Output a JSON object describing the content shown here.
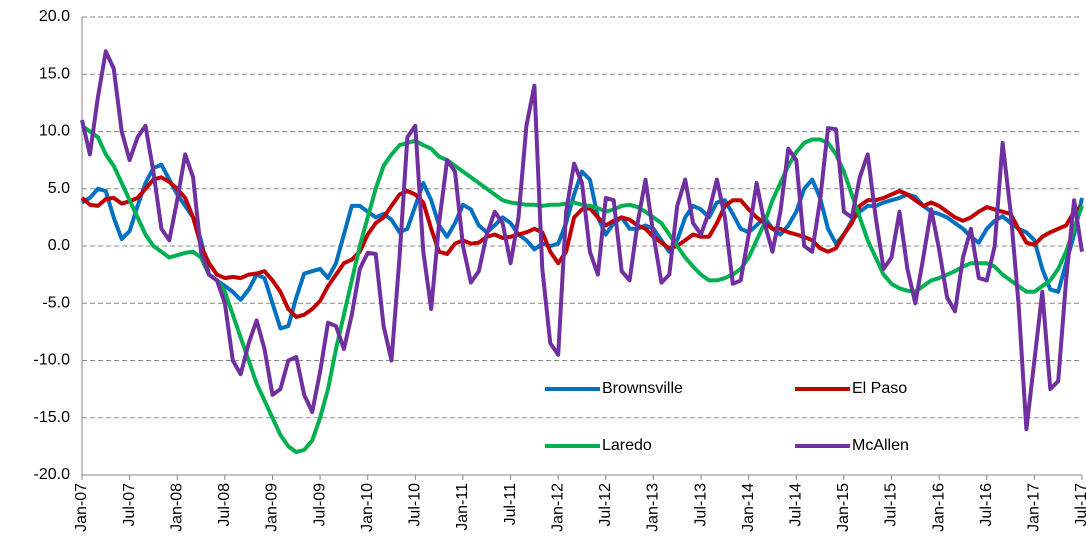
{
  "chart_data": {
    "type": "line",
    "categories": [
      "Jan-07",
      null,
      null,
      null,
      null,
      null,
      "Jul-07",
      null,
      null,
      null,
      null,
      null,
      "Jan-08",
      null,
      null,
      null,
      null,
      null,
      "Jul-08",
      null,
      null,
      null,
      null,
      null,
      "Jan-09",
      null,
      null,
      null,
      null,
      null,
      "Jul-09",
      null,
      null,
      null,
      null,
      null,
      "Jan-10",
      null,
      null,
      null,
      null,
      null,
      "Jul-10",
      null,
      null,
      null,
      null,
      null,
      "Jan-11",
      null,
      null,
      null,
      null,
      null,
      "Jul-11",
      null,
      null,
      null,
      null,
      null,
      "Jan-12",
      null,
      null,
      null,
      null,
      null,
      "Jul-12",
      null,
      null,
      null,
      null,
      null,
      "Jan-13",
      null,
      null,
      null,
      null,
      null,
      "Jul-13",
      null,
      null,
      null,
      null,
      null,
      "Jan-14",
      null,
      null,
      null,
      null,
      null,
      "Jul-14",
      null,
      null,
      null,
      null,
      null,
      "Jan-15",
      null,
      null,
      null,
      null,
      null,
      "Jul-15",
      null,
      null,
      null,
      null,
      null,
      "Jan-16",
      null,
      null,
      null,
      null,
      null,
      "Jul-16",
      null,
      null,
      null,
      null,
      null,
      "Jan-17",
      null,
      null,
      null,
      null,
      null,
      "Jul-17"
    ],
    "series": [
      {
        "name": "Brownsville",
        "color": "#0070c0",
        "values": [
          3.8,
          4.2,
          5.0,
          4.8,
          2.5,
          0.6,
          1.3,
          3.5,
          5.5,
          6.8,
          7.1,
          5.8,
          4.5,
          3.5,
          2.5,
          0.5,
          -2.5,
          -3.0,
          -3.5,
          -4.0,
          -4.7,
          -3.8,
          -2.5,
          -2.8,
          -5.0,
          -7.2,
          -7.0,
          -4.5,
          -2.4,
          -2.2,
          -2.0,
          -2.8,
          -1.5,
          1.0,
          3.5,
          3.5,
          3.0,
          2.5,
          2.8,
          2.3,
          1.2,
          1.5,
          3.5,
          5.5,
          4.0,
          1.8,
          0.8,
          2.0,
          3.6,
          3.2,
          1.8,
          1.2,
          1.8,
          2.5,
          2.0,
          1.0,
          0.5,
          -0.3,
          0.2,
          0.0,
          0.2,
          2.0,
          4.5,
          6.5,
          5.8,
          2.5,
          1.0,
          2.0,
          2.5,
          1.5,
          1.5,
          1.8,
          1.5,
          0.5,
          -0.5,
          0.5,
          2.5,
          3.5,
          3.2,
          2.5,
          3.8,
          4.0,
          2.8,
          1.5,
          1.2,
          1.8,
          2.5,
          1.5,
          1.0,
          1.8,
          3.0,
          5.0,
          5.8,
          4.2,
          1.5,
          0.2,
          1.0,
          2.2,
          3.0,
          3.5,
          3.5,
          3.8,
          4.0,
          4.2,
          4.5,
          4.3,
          3.5,
          3.0,
          2.8,
          2.5,
          2.0,
          1.5,
          0.8,
          0.3,
          1.5,
          2.2,
          2.6,
          2.0,
          1.5,
          1.2,
          0.5,
          -2.0,
          -3.8,
          -4.0,
          -1.5,
          1.0,
          4.2
        ]
      },
      {
        "name": "El Paso",
        "color": "#c00000",
        "values": [
          4.2,
          3.6,
          3.5,
          4.1,
          4.2,
          3.7,
          3.9,
          4.2,
          5.0,
          5.8,
          6.0,
          5.6,
          5.0,
          4.2,
          2.5,
          0.0,
          -1.5,
          -2.5,
          -2.8,
          -2.7,
          -2.8,
          -2.5,
          -2.4,
          -2.2,
          -3.0,
          -4.0,
          -5.5,
          -6.2,
          -6.0,
          -5.5,
          -4.8,
          -3.5,
          -2.5,
          -1.5,
          -1.2,
          -0.5,
          1.0,
          2.0,
          2.5,
          3.5,
          4.5,
          4.8,
          4.5,
          3.8,
          1.5,
          -0.5,
          -0.7,
          0.2,
          0.5,
          0.2,
          0.3,
          0.8,
          1.0,
          0.7,
          0.8,
          1.0,
          1.2,
          1.5,
          1.2,
          -0.5,
          -1.5,
          -0.5,
          2.5,
          3.2,
          3.3,
          2.5,
          1.8,
          2.2,
          2.5,
          2.3,
          1.8,
          1.5,
          0.8,
          0.3,
          -0.2,
          0.0,
          0.5,
          1.0,
          0.8,
          0.8,
          2.0,
          3.5,
          4.0,
          4.0,
          3.2,
          2.5,
          2.0,
          1.5,
          1.5,
          1.2,
          1.0,
          0.8,
          0.5,
          -0.2,
          -0.5,
          -0.2,
          1.0,
          2.0,
          3.5,
          4.0,
          4.0,
          4.2,
          4.5,
          4.8,
          4.5,
          4.0,
          3.5,
          3.8,
          3.5,
          3.0,
          2.5,
          2.2,
          2.5,
          3.0,
          3.4,
          3.2,
          3.0,
          2.8,
          1.5,
          0.3,
          0.1,
          0.8,
          1.2,
          1.5,
          1.8,
          3.0,
          3.5
        ]
      },
      {
        "name": "Laredo",
        "color": "#00b050",
        "values": [
          10.5,
          10.0,
          9.5,
          8.0,
          7.0,
          5.5,
          4.0,
          2.5,
          1.0,
          0.0,
          -0.5,
          -1.0,
          -0.8,
          -0.6,
          -0.5,
          -1.0,
          -2.5,
          -3.0,
          -4.0,
          -6.0,
          -8.0,
          -10.0,
          -12.0,
          -13.5,
          -15.0,
          -16.5,
          -17.5,
          -18.0,
          -17.8,
          -17.0,
          -15.0,
          -12.5,
          -9.0,
          -6.0,
          -3.0,
          0.0,
          2.5,
          5.0,
          7.0,
          8.0,
          8.8,
          9.0,
          9.2,
          8.8,
          8.5,
          7.8,
          7.5,
          7.0,
          6.5,
          6.0,
          5.5,
          5.0,
          4.5,
          4.0,
          3.8,
          3.7,
          3.6,
          3.6,
          3.5,
          3.6,
          3.6,
          3.7,
          3.8,
          3.6,
          3.5,
          3.3,
          3.0,
          3.2,
          3.5,
          3.6,
          3.4,
          3.0,
          2.5,
          2.0,
          1.0,
          0.0,
          -1.0,
          -1.8,
          -2.5,
          -3.0,
          -3.0,
          -2.8,
          -2.5,
          -2.0,
          -1.0,
          0.5,
          2.0,
          4.0,
          5.5,
          7.0,
          8.2,
          9.0,
          9.3,
          9.3,
          9.0,
          8.0,
          6.5,
          4.5,
          2.5,
          0.5,
          -1.0,
          -2.5,
          -3.3,
          -3.7,
          -3.9,
          -4.0,
          -3.5,
          -3.0,
          -2.8,
          -2.5,
          -2.2,
          -1.8,
          -1.5,
          -1.5,
          -1.5,
          -1.8,
          -2.5,
          -3.0,
          -3.5,
          -4.0,
          -4.0,
          -3.5,
          -3.0,
          -2.0,
          -0.5,
          1.5,
          3.5
        ]
      },
      {
        "name": "McAllen",
        "color": "#7030a0",
        "values": [
          11.0,
          8.0,
          13.0,
          17.0,
          15.5,
          10.0,
          7.5,
          9.5,
          10.5,
          6.5,
          1.5,
          0.5,
          4.0,
          8.0,
          6.0,
          -0.5,
          -2.5,
          -3.0,
          -5.0,
          -10.0,
          -11.2,
          -8.5,
          -6.5,
          -9.0,
          -13.0,
          -12.5,
          -10.0,
          -9.7,
          -13.0,
          -14.5,
          -11.0,
          -6.7,
          -7.0,
          -9.0,
          -6.0,
          -2.0,
          -0.6,
          -0.7,
          -7.0,
          -10.0,
          -1.0,
          9.5,
          10.5,
          -0.5,
          -5.5,
          2.0,
          7.5,
          6.5,
          0.0,
          -3.2,
          -2.2,
          1.0,
          3.0,
          2.0,
          -1.5,
          2.5,
          10.5,
          14.0,
          -2.0,
          -8.5,
          -9.5,
          3.0,
          7.2,
          5.5,
          -0.5,
          -2.5,
          4.2,
          4.0,
          -2.2,
          -3.0,
          2.0,
          5.8,
          1.0,
          -3.2,
          -2.5,
          3.5,
          5.8,
          2.0,
          1.0,
          3.0,
          5.8,
          2.5,
          -3.3,
          -3.0,
          1.0,
          5.5,
          2.0,
          -0.5,
          3.0,
          8.5,
          7.5,
          0.0,
          -0.5,
          4.0,
          10.3,
          10.2,
          3.0,
          2.5,
          6.0,
          8.0,
          2.5,
          -2.0,
          -1.0,
          3.0,
          -2.0,
          -5.0,
          -1.0,
          3.2,
          -0.3,
          -4.5,
          -5.7,
          -1.0,
          1.5,
          -2.8,
          -3.0,
          0.0,
          9.0,
          3.0,
          -5.0,
          -16.0,
          -10.0,
          -4.0,
          -12.5,
          -11.8,
          -3.0,
          4.0,
          -0.5
        ]
      }
    ],
    "ylim": [
      -20,
      20
    ],
    "yticks": [
      {
        "value": -20,
        "label": "-20.0"
      },
      {
        "value": -15,
        "label": "-15.0"
      },
      {
        "value": -10,
        "label": "-10.0"
      },
      {
        "value": -5,
        "label": "-5.0"
      },
      {
        "value": 0,
        "label": "0.0"
      },
      {
        "value": 5,
        "label": "5.0"
      },
      {
        "value": 10,
        "label": "10.0"
      },
      {
        "value": 15,
        "label": "15.0"
      },
      {
        "value": 20,
        "label": "20.0"
      }
    ],
    "grid": true,
    "legend": "lower right"
  }
}
